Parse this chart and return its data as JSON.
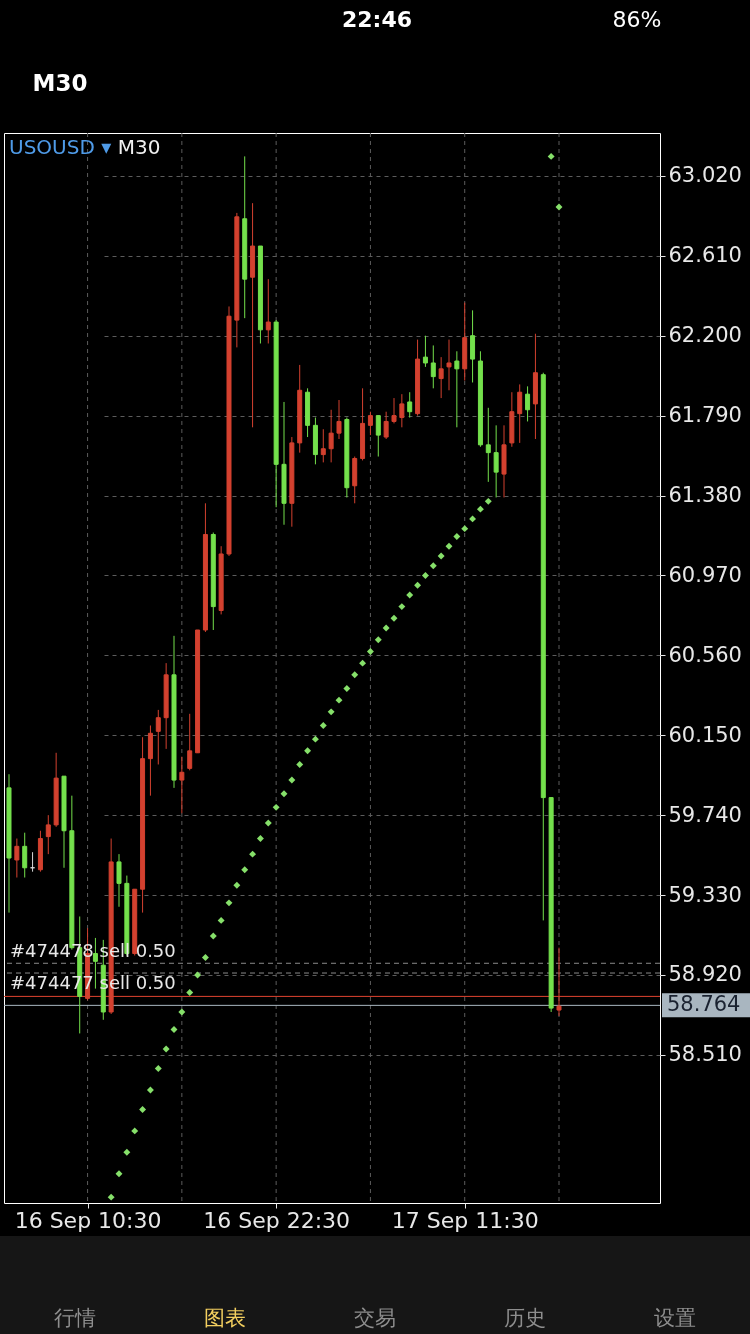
{
  "chart_data": {
    "type": "candlestick",
    "title": "USOUSD ▾",
    "subtitle": "M30",
    "categories": [
      null,
      null,
      null,
      null,
      null,
      null,
      null,
      null,
      null,
      null,
      "16 Sep 10:30",
      null,
      null,
      null,
      null,
      null,
      null,
      null,
      null,
      null,
      null,
      null,
      null,
      null,
      null,
      null,
      null,
      null,
      null,
      null,
      null,
      null,
      null,
      null,
      "16 Sep 22:30",
      null,
      null,
      null,
      null,
      null,
      null,
      null,
      null,
      null,
      null,
      null,
      null,
      null,
      null,
      null,
      null,
      null,
      null,
      null,
      null,
      null,
      null,
      null,
      "17 Sep 11:30",
      null,
      null,
      null,
      null,
      null,
      null,
      null,
      null,
      null,
      null,
      null,
      null
    ],
    "ohlc": [
      [
        59.88,
        59.95,
        59.24,
        59.52
      ],
      [
        59.51,
        59.62,
        59.42,
        59.58
      ],
      [
        59.58,
        59.65,
        59.42,
        59.47
      ],
      [
        59.47,
        59.55,
        59.45,
        59.47
      ],
      [
        59.46,
        59.66,
        59.45,
        59.62
      ],
      [
        59.63,
        59.74,
        59.54,
        59.69
      ],
      [
        59.69,
        60.06,
        59.68,
        59.93
      ],
      [
        59.94,
        59.94,
        59.47,
        59.66
      ],
      [
        59.66,
        59.84,
        59.05,
        59.06
      ],
      [
        59.06,
        59.22,
        58.62,
        58.81
      ],
      [
        58.8,
        59.16,
        58.79,
        59.03
      ],
      [
        59.03,
        59.11,
        58.85,
        58.99
      ],
      [
        58.97,
        59.1,
        58.69,
        58.73
      ],
      [
        58.73,
        59.62,
        58.72,
        59.5
      ],
      [
        59.5,
        59.54,
        59.27,
        59.39
      ],
      [
        59.39,
        59.43,
        59.02,
        59.03
      ],
      [
        59.03,
        59.36,
        59.02,
        59.36
      ],
      [
        59.36,
        60.14,
        59.24,
        60.03
      ],
      [
        60.03,
        60.2,
        59.84,
        60.16
      ],
      [
        60.17,
        60.28,
        60.0,
        60.24
      ],
      [
        60.24,
        60.52,
        60.08,
        60.46
      ],
      [
        60.46,
        60.66,
        59.88,
        59.92
      ],
      [
        59.92,
        60.04,
        59.75,
        59.96
      ],
      [
        59.98,
        60.26,
        59.97,
        60.07
      ],
      [
        60.06,
        60.69,
        60.06,
        60.69
      ],
      [
        60.69,
        61.34,
        60.68,
        61.18
      ],
      [
        61.18,
        61.19,
        60.69,
        60.81
      ],
      [
        60.79,
        61.12,
        60.77,
        61.08
      ],
      [
        61.08,
        62.35,
        61.07,
        62.3
      ],
      [
        62.28,
        62.83,
        62.14,
        62.81
      ],
      [
        62.8,
        63.12,
        62.29,
        62.49
      ],
      [
        62.5,
        62.88,
        61.73,
        62.66
      ],
      [
        62.66,
        62.66,
        62.16,
        62.23
      ],
      [
        62.23,
        62.49,
        62.16,
        62.27
      ],
      [
        62.27,
        62.28,
        61.32,
        61.54
      ],
      [
        61.54,
        61.86,
        61.23,
        61.34
      ],
      [
        61.34,
        61.68,
        61.22,
        61.65
      ],
      [
        61.65,
        62.05,
        61.6,
        61.92
      ],
      [
        61.91,
        61.93,
        61.68,
        61.74
      ],
      [
        61.74,
        61.78,
        61.54,
        61.59
      ],
      [
        61.59,
        61.72,
        61.55,
        61.62
      ],
      [
        61.62,
        61.82,
        61.55,
        61.7
      ],
      [
        61.7,
        61.87,
        61.67,
        61.76
      ],
      [
        61.77,
        61.78,
        61.37,
        61.42
      ],
      [
        61.43,
        61.58,
        61.34,
        61.57
      ],
      [
        61.57,
        61.93,
        61.56,
        61.75
      ],
      [
        61.74,
        61.81,
        61.69,
        61.79
      ],
      [
        61.79,
        61.79,
        61.58,
        61.69
      ],
      [
        61.68,
        61.81,
        61.67,
        61.76
      ],
      [
        61.76,
        61.88,
        61.75,
        61.79
      ],
      [
        61.78,
        61.9,
        61.73,
        61.85
      ],
      [
        61.86,
        61.91,
        61.78,
        61.81
      ],
      [
        61.8,
        62.18,
        61.79,
        62.08
      ],
      [
        62.09,
        62.2,
        62.04,
        62.06
      ],
      [
        62.06,
        62.15,
        61.93,
        61.99
      ],
      [
        61.98,
        62.09,
        61.88,
        62.03
      ],
      [
        62.04,
        62.18,
        61.92,
        62.06
      ],
      [
        62.07,
        62.12,
        61.73,
        62.03
      ],
      [
        62.03,
        62.37,
        61.97,
        62.19
      ],
      [
        62.2,
        62.33,
        61.96,
        62.08
      ],
      [
        62.07,
        62.12,
        61.63,
        61.64
      ],
      [
        61.64,
        61.83,
        61.45,
        61.6
      ],
      [
        61.6,
        61.74,
        61.37,
        61.5
      ],
      [
        61.49,
        61.74,
        61.37,
        61.64
      ],
      [
        61.65,
        61.91,
        61.63,
        61.81
      ],
      [
        61.8,
        61.95,
        61.65,
        61.91
      ],
      [
        61.9,
        61.94,
        61.76,
        61.82
      ],
      [
        61.85,
        62.21,
        61.67,
        62.01
      ],
      [
        62.0,
        62.01,
        59.2,
        59.83
      ],
      [
        59.83,
        59.83,
        58.73,
        58.75
      ],
      [
        58.74,
        59.06,
        58.71,
        58.76
      ]
    ],
    "colors": [
      "#74e04c",
      "#d3412f",
      "#74e04c",
      "#d8d8d8",
      "#d3412f",
      "#d3412f",
      "#d3412f",
      "#74e04c",
      "#74e04c",
      "#74e04c",
      "#d3412f",
      "#74e04c",
      "#74e04c",
      "#d3412f",
      "#74e04c",
      "#74e04c",
      "#d3412f",
      "#d3412f",
      "#d3412f",
      "#d3412f",
      "#d3412f",
      "#74e04c",
      "#d3412f",
      "#d3412f",
      "#d3412f",
      "#d3412f",
      "#74e04c",
      "#d3412f",
      "#d3412f",
      "#d3412f",
      "#74e04c",
      "#d3412f",
      "#74e04c",
      "#d3412f",
      "#74e04c",
      "#74e04c",
      "#d3412f",
      "#d3412f",
      "#74e04c",
      "#74e04c",
      "#d3412f",
      "#d3412f",
      "#d3412f",
      "#74e04c",
      "#d3412f",
      "#d3412f",
      "#d3412f",
      "#74e04c",
      "#d3412f",
      "#d3412f",
      "#d3412f",
      "#74e04c",
      "#d3412f",
      "#74e04c",
      "#74e04c",
      "#d3412f",
      "#d3412f",
      "#74e04c",
      "#d3412f",
      "#74e04c",
      "#74e04c",
      "#74e04c",
      "#74e04c",
      "#d3412f",
      "#d3412f",
      "#d3412f",
      "#74e04c",
      "#d3412f",
      "#74e04c",
      "#74e04c",
      "#d3412f"
    ],
    "series": [
      {
        "type": "scatter",
        "color": "#86e06a",
        "marker": "diamond",
        "values": [
          null,
          null,
          null,
          null,
          null,
          null,
          null,
          null,
          null,
          null,
          null,
          null,
          null,
          57.78,
          57.9,
          58.01,
          58.12,
          58.23,
          58.33,
          58.44,
          58.54,
          58.64,
          58.73,
          58.83,
          58.92,
          59.01,
          59.12,
          59.2,
          59.29,
          59.38,
          59.46,
          59.54,
          59.62,
          59.7,
          59.78,
          59.85,
          59.92,
          60.0,
          60.07,
          60.13,
          60.2,
          60.27,
          60.33,
          60.39,
          60.46,
          60.52,
          60.58,
          60.64,
          60.7,
          60.75,
          60.81,
          60.87,
          60.92,
          60.97,
          61.02,
          61.07,
          61.12,
          61.17,
          61.21,
          61.26,
          61.31,
          61.35,
          null,
          null,
          null,
          null,
          null,
          null,
          null,
          63.12,
          62.86
        ]
      }
    ],
    "ylim": [
      57.75,
      63.24
    ],
    "yticks": [
      {
        "value": 58.51,
        "label": "58.510"
      },
      {
        "value": 58.92,
        "label": "58.920"
      },
      {
        "value": 59.33,
        "label": "59.330"
      },
      {
        "value": 59.74,
        "label": "59.740"
      },
      {
        "value": 60.15,
        "label": "60.150"
      },
      {
        "value": 60.56,
        "label": "60.560"
      },
      {
        "value": 60.97,
        "label": "60.970"
      },
      {
        "value": 61.38,
        "label": "61.380"
      },
      {
        "value": 61.79,
        "label": "61.790"
      },
      {
        "value": 62.2,
        "label": "62.200"
      },
      {
        "value": 62.61,
        "label": "62.610"
      },
      {
        "value": 63.02,
        "label": "63.020"
      }
    ],
    "grid": true,
    "ref_lines": [
      {
        "axis": "y",
        "value": 58.98,
        "label": "#474478 sell 0.50",
        "color": "#8a8a8a",
        "line_style": "dashed"
      },
      {
        "axis": "y",
        "value": 58.93,
        "label": "#474477 sell 0.50",
        "color": "#8a8a8a",
        "line_style": "dashed"
      },
      {
        "axis": "y",
        "value": 58.81,
        "color": "#e0442f",
        "line_style": "solid"
      },
      {
        "axis": "y",
        "value": 58.764,
        "label": "58.764",
        "color": "#a9b6c0",
        "line_style": "solid"
      }
    ],
    "annotations": [
      "22:46",
      "86%",
      "M30",
      "行情",
      "图表",
      "交易",
      "历史",
      "设置"
    ]
  }
}
